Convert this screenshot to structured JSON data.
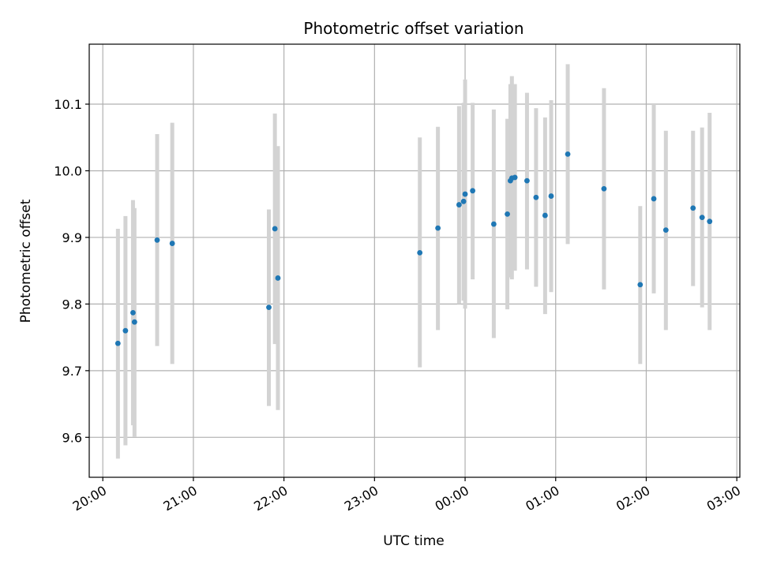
{
  "chart_data": {
    "type": "scatter",
    "title": "Photometric offset variation",
    "xlabel": "UTC time",
    "ylabel": "Photometric offset",
    "x_axis": "datetime",
    "xlim": [
      "2000-01-01T19:51",
      "2000-01-02T03:02"
    ],
    "ylim": [
      9.54,
      10.19
    ],
    "grid": true,
    "colors": {
      "points": "#1f77b4",
      "errorbars": "#d3d3d3",
      "grid": "#b0b0b0",
      "axes": "#000000"
    },
    "x_ticks": [
      {
        "t": "2000-01-01T20:00",
        "label": "20:00"
      },
      {
        "t": "2000-01-01T21:00",
        "label": "21:00"
      },
      {
        "t": "2000-01-01T22:00",
        "label": "22:00"
      },
      {
        "t": "2000-01-01T23:00",
        "label": "23:00"
      },
      {
        "t": "2000-01-02T00:00",
        "label": "00:00"
      },
      {
        "t": "2000-01-02T01:00",
        "label": "01:00"
      },
      {
        "t": "2000-01-02T02:00",
        "label": "02:00"
      },
      {
        "t": "2000-01-02T03:00",
        "label": "03:00"
      }
    ],
    "y_ticks": [
      {
        "v": 9.6,
        "label": "9.6"
      },
      {
        "v": 9.7,
        "label": "9.7"
      },
      {
        "v": 9.8,
        "label": "9.8"
      },
      {
        "v": 9.9,
        "label": "9.9"
      },
      {
        "v": 10.0,
        "label": "10.0"
      },
      {
        "v": 10.1,
        "label": "10.1"
      }
    ],
    "points": [
      {
        "t": "2000-01-01T20:10",
        "y": 9.741,
        "lo": 9.568,
        "hi": 9.913
      },
      {
        "t": "2000-01-01T20:15",
        "y": 9.76,
        "lo": 9.588,
        "hi": 9.932
      },
      {
        "t": "2000-01-01T20:20",
        "y": 9.787,
        "lo": 9.618,
        "hi": 9.956
      },
      {
        "t": "2000-01-01T20:21",
        "y": 9.773,
        "lo": 9.601,
        "hi": 9.944
      },
      {
        "t": "2000-01-01T20:36",
        "y": 9.896,
        "lo": 9.737,
        "hi": 10.055
      },
      {
        "t": "2000-01-01T20:46",
        "y": 9.891,
        "lo": 9.71,
        "hi": 10.072
      },
      {
        "t": "2000-01-01T21:50",
        "y": 9.795,
        "lo": 9.647,
        "hi": 9.942
      },
      {
        "t": "2000-01-01T21:54",
        "y": 9.913,
        "lo": 9.74,
        "hi": 10.086
      },
      {
        "t": "2000-01-01T21:56",
        "y": 9.839,
        "lo": 9.641,
        "hi": 10.037
      },
      {
        "t": "2000-01-01T23:30",
        "y": 9.877,
        "lo": 9.705,
        "hi": 10.05
      },
      {
        "t": "2000-01-01T23:42",
        "y": 9.914,
        "lo": 9.761,
        "hi": 10.066
      },
      {
        "t": "2000-01-01T23:56",
        "y": 9.949,
        "lo": 9.8,
        "hi": 10.097
      },
      {
        "t": "2000-01-01T23:59",
        "y": 9.954,
        "lo": 9.805,
        "hi": 10.102
      },
      {
        "t": "2000-01-02T00:00",
        "y": 9.965,
        "lo": 9.793,
        "hi": 10.137
      },
      {
        "t": "2000-01-02T00:05",
        "y": 9.97,
        "lo": 9.837,
        "hi": 10.102
      },
      {
        "t": "2000-01-02T00:19",
        "y": 9.92,
        "lo": 9.749,
        "hi": 10.092
      },
      {
        "t": "2000-01-02T00:28",
        "y": 9.935,
        "lo": 9.792,
        "hi": 10.078
      },
      {
        "t": "2000-01-02T00:30",
        "y": 9.985,
        "lo": 9.84,
        "hi": 10.13
      },
      {
        "t": "2000-01-02T00:31",
        "y": 9.989,
        "lo": 9.837,
        "hi": 10.142
      },
      {
        "t": "2000-01-02T00:33",
        "y": 9.99,
        "lo": 9.85,
        "hi": 10.13
      },
      {
        "t": "2000-01-02T00:41",
        "y": 9.985,
        "lo": 9.852,
        "hi": 10.117
      },
      {
        "t": "2000-01-02T00:47",
        "y": 9.96,
        "lo": 9.826,
        "hi": 10.094
      },
      {
        "t": "2000-01-02T00:53",
        "y": 9.933,
        "lo": 9.785,
        "hi": 10.08
      },
      {
        "t": "2000-01-02T00:57",
        "y": 9.962,
        "lo": 9.818,
        "hi": 10.106
      },
      {
        "t": "2000-01-02T01:08",
        "y": 10.025,
        "lo": 9.89,
        "hi": 10.16
      },
      {
        "t": "2000-01-02T01:32",
        "y": 9.973,
        "lo": 9.822,
        "hi": 10.124
      },
      {
        "t": "2000-01-02T01:56",
        "y": 9.829,
        "lo": 9.71,
        "hi": 9.947
      },
      {
        "t": "2000-01-02T02:05",
        "y": 9.958,
        "lo": 9.816,
        "hi": 10.1
      },
      {
        "t": "2000-01-02T02:13",
        "y": 9.911,
        "lo": 9.761,
        "hi": 10.06
      },
      {
        "t": "2000-01-02T02:31",
        "y": 9.944,
        "lo": 9.827,
        "hi": 10.06
      },
      {
        "t": "2000-01-02T02:37",
        "y": 9.93,
        "lo": 9.795,
        "hi": 10.065
      },
      {
        "t": "2000-01-02T02:42",
        "y": 9.924,
        "lo": 9.761,
        "hi": 10.087
      }
    ]
  }
}
